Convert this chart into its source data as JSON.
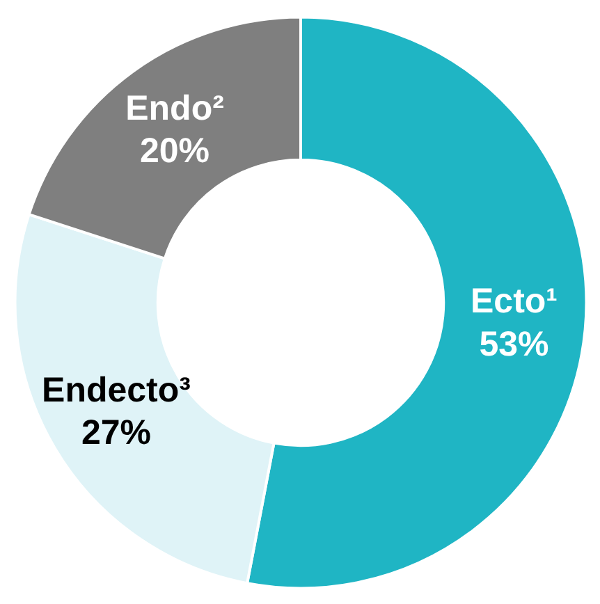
{
  "chart_data": {
    "type": "donut",
    "categories": [
      "Ecto¹",
      "Endecto³",
      "Endo²"
    ],
    "values": [
      53,
      27,
      20
    ],
    "colors": [
      "#1fb5c4",
      "#dff3f7",
      "#7f7f7f"
    ],
    "value_labels": [
      "53%",
      "27%",
      "20%"
    ]
  }
}
